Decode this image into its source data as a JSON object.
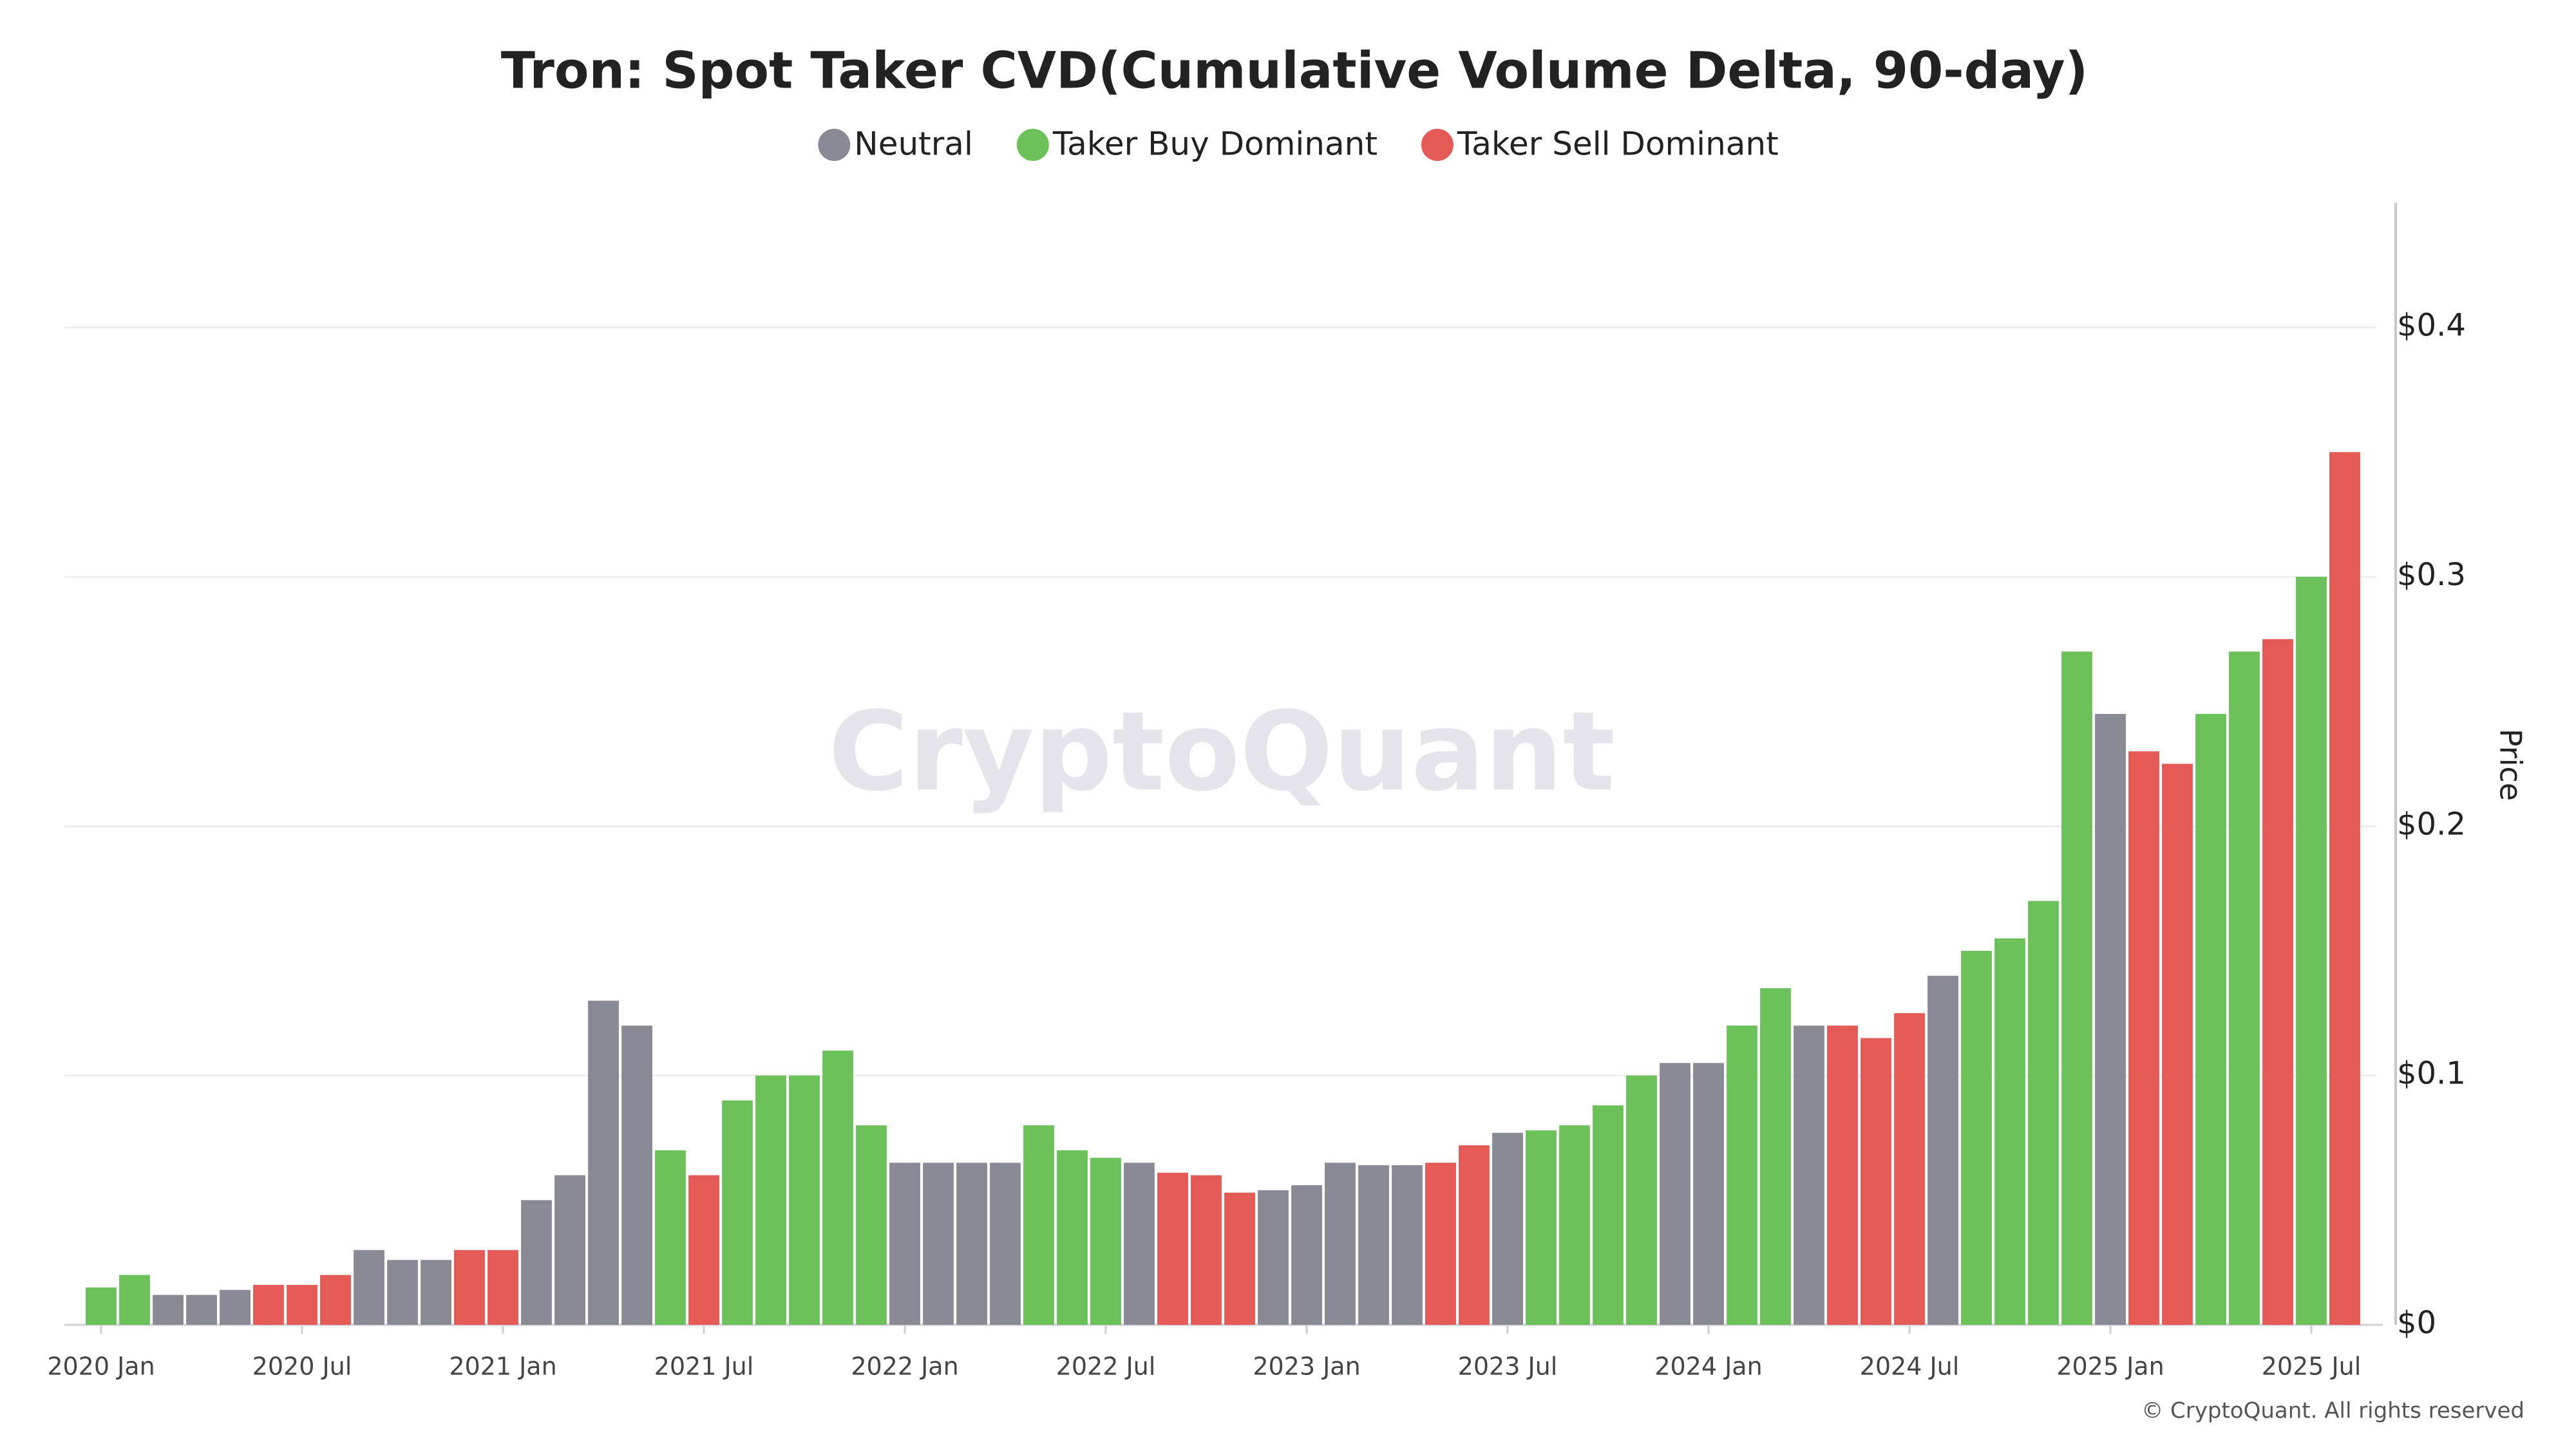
{
  "chart_data": {
    "type": "bar",
    "title": "Tron: Spot Taker CVD(Cumulative Volume Delta, 90-day)",
    "watermark": "CryptoQuant",
    "credit": "© CryptoQuant. All rights reserved",
    "y_label": "Price",
    "x": [
      "2020 Jan",
      "2020 Feb",
      "2020 Mar",
      "2020 Apr",
      "2020 May",
      "2020 Jun",
      "2020 Jul",
      "2020 Aug",
      "2020 Sep",
      "2020 Oct",
      "2020 Nov",
      "2020 Dec",
      "2021 Jan",
      "2021 Feb",
      "2021 Mar",
      "2021 Apr",
      "2021 May",
      "2021 Jun",
      "2021 Jul",
      "2021 Aug",
      "2021 Sep",
      "2021 Oct",
      "2021 Nov",
      "2021 Dec",
      "2022 Jan",
      "2022 Feb",
      "2022 Mar",
      "2022 Apr",
      "2022 May",
      "2022 Jun",
      "2022 Jul",
      "2022 Aug",
      "2022 Sep",
      "2022 Oct",
      "2022 Nov",
      "2022 Dec",
      "2023 Jan",
      "2023 Feb",
      "2023 Mar",
      "2023 Apr",
      "2023 May",
      "2023 Jun",
      "2023 Jul",
      "2023 Aug",
      "2023 Sep",
      "2023 Oct",
      "2023 Nov",
      "2023 Dec",
      "2024 Jan",
      "2024 Feb",
      "2024 Mar",
      "2024 Apr",
      "2024 May",
      "2024 Jun",
      "2024 Jul",
      "2024 Aug",
      "2024 Sep",
      "2024 Oct",
      "2024 Nov",
      "2024 Dec",
      "2025 Jan",
      "2025 Feb",
      "2025 Mar",
      "2025 Apr",
      "2025 May",
      "2025 Jun",
      "2025 Jul",
      "2025 Aug"
    ],
    "xticks": [
      "2020 Jan",
      "2020 Jul",
      "2021 Jan",
      "2021 Jul",
      "2022 Jan",
      "2022 Jul",
      "2023 Jan",
      "2023 Jul",
      "2024 Jan",
      "2024 Jul",
      "2025 Jan",
      "2025 Jul"
    ],
    "series": [
      {
        "name": "Neutral",
        "color": "#8a8996",
        "values": [
          null,
          null,
          0.012,
          0.012,
          0.014,
          null,
          null,
          null,
          0.03,
          0.026,
          0.026,
          null,
          null,
          0.05,
          0.06,
          0.13,
          0.12,
          null,
          null,
          null,
          null,
          null,
          null,
          null,
          0.065,
          0.065,
          0.065,
          0.065,
          null,
          null,
          null,
          0.065,
          null,
          null,
          null,
          0.054,
          0.056,
          0.065,
          0.064,
          0.064,
          null,
          null,
          0.077,
          null,
          null,
          null,
          null,
          0.105,
          0.105,
          null,
          null,
          0.12,
          null,
          null,
          null,
          0.14,
          null,
          null,
          null,
          null,
          0.245,
          null,
          null,
          null,
          null,
          null,
          null,
          null
        ]
      },
      {
        "name": "Taker Buy Dominant",
        "color": "#6cc15a",
        "values": [
          0.015,
          0.02,
          null,
          null,
          null,
          null,
          null,
          null,
          null,
          null,
          null,
          null,
          null,
          null,
          null,
          null,
          null,
          0.07,
          null,
          0.09,
          0.1,
          0.1,
          0.11,
          0.08,
          null,
          null,
          null,
          null,
          0.08,
          0.07,
          0.067,
          null,
          null,
          null,
          null,
          null,
          null,
          null,
          null,
          null,
          null,
          null,
          null,
          0.078,
          0.08,
          0.088,
          0.1,
          null,
          null,
          0.12,
          0.135,
          null,
          null,
          null,
          null,
          null,
          0.15,
          0.155,
          0.17,
          0.27,
          null,
          null,
          null,
          0.245,
          0.27,
          null,
          0.3,
          null
        ]
      },
      {
        "name": "Taker Sell Dominant",
        "color": "#e45a57",
        "values": [
          null,
          null,
          null,
          null,
          null,
          0.016,
          0.016,
          0.02,
          null,
          null,
          null,
          0.03,
          0.03,
          null,
          null,
          null,
          null,
          null,
          0.06,
          null,
          null,
          null,
          null,
          null,
          null,
          null,
          null,
          null,
          null,
          null,
          null,
          null,
          0.061,
          0.06,
          0.053,
          null,
          null,
          null,
          null,
          null,
          0.065,
          0.072,
          null,
          null,
          null,
          null,
          null,
          null,
          null,
          null,
          null,
          null,
          0.12,
          0.115,
          0.125,
          null,
          null,
          null,
          null,
          null,
          null,
          0.23,
          0.225,
          null,
          null,
          0.275,
          null,
          0.35
        ]
      }
    ],
    "ylim": [
      0,
      0.45
    ],
    "yticks": [
      {
        "value": 0,
        "label": "$0"
      },
      {
        "value": 0.1,
        "label": "$0.1"
      },
      {
        "value": 0.2,
        "label": "$0.2"
      },
      {
        "value": 0.3,
        "label": "$0.3"
      },
      {
        "value": 0.4,
        "label": "$0.4"
      }
    ],
    "grid": true
  }
}
